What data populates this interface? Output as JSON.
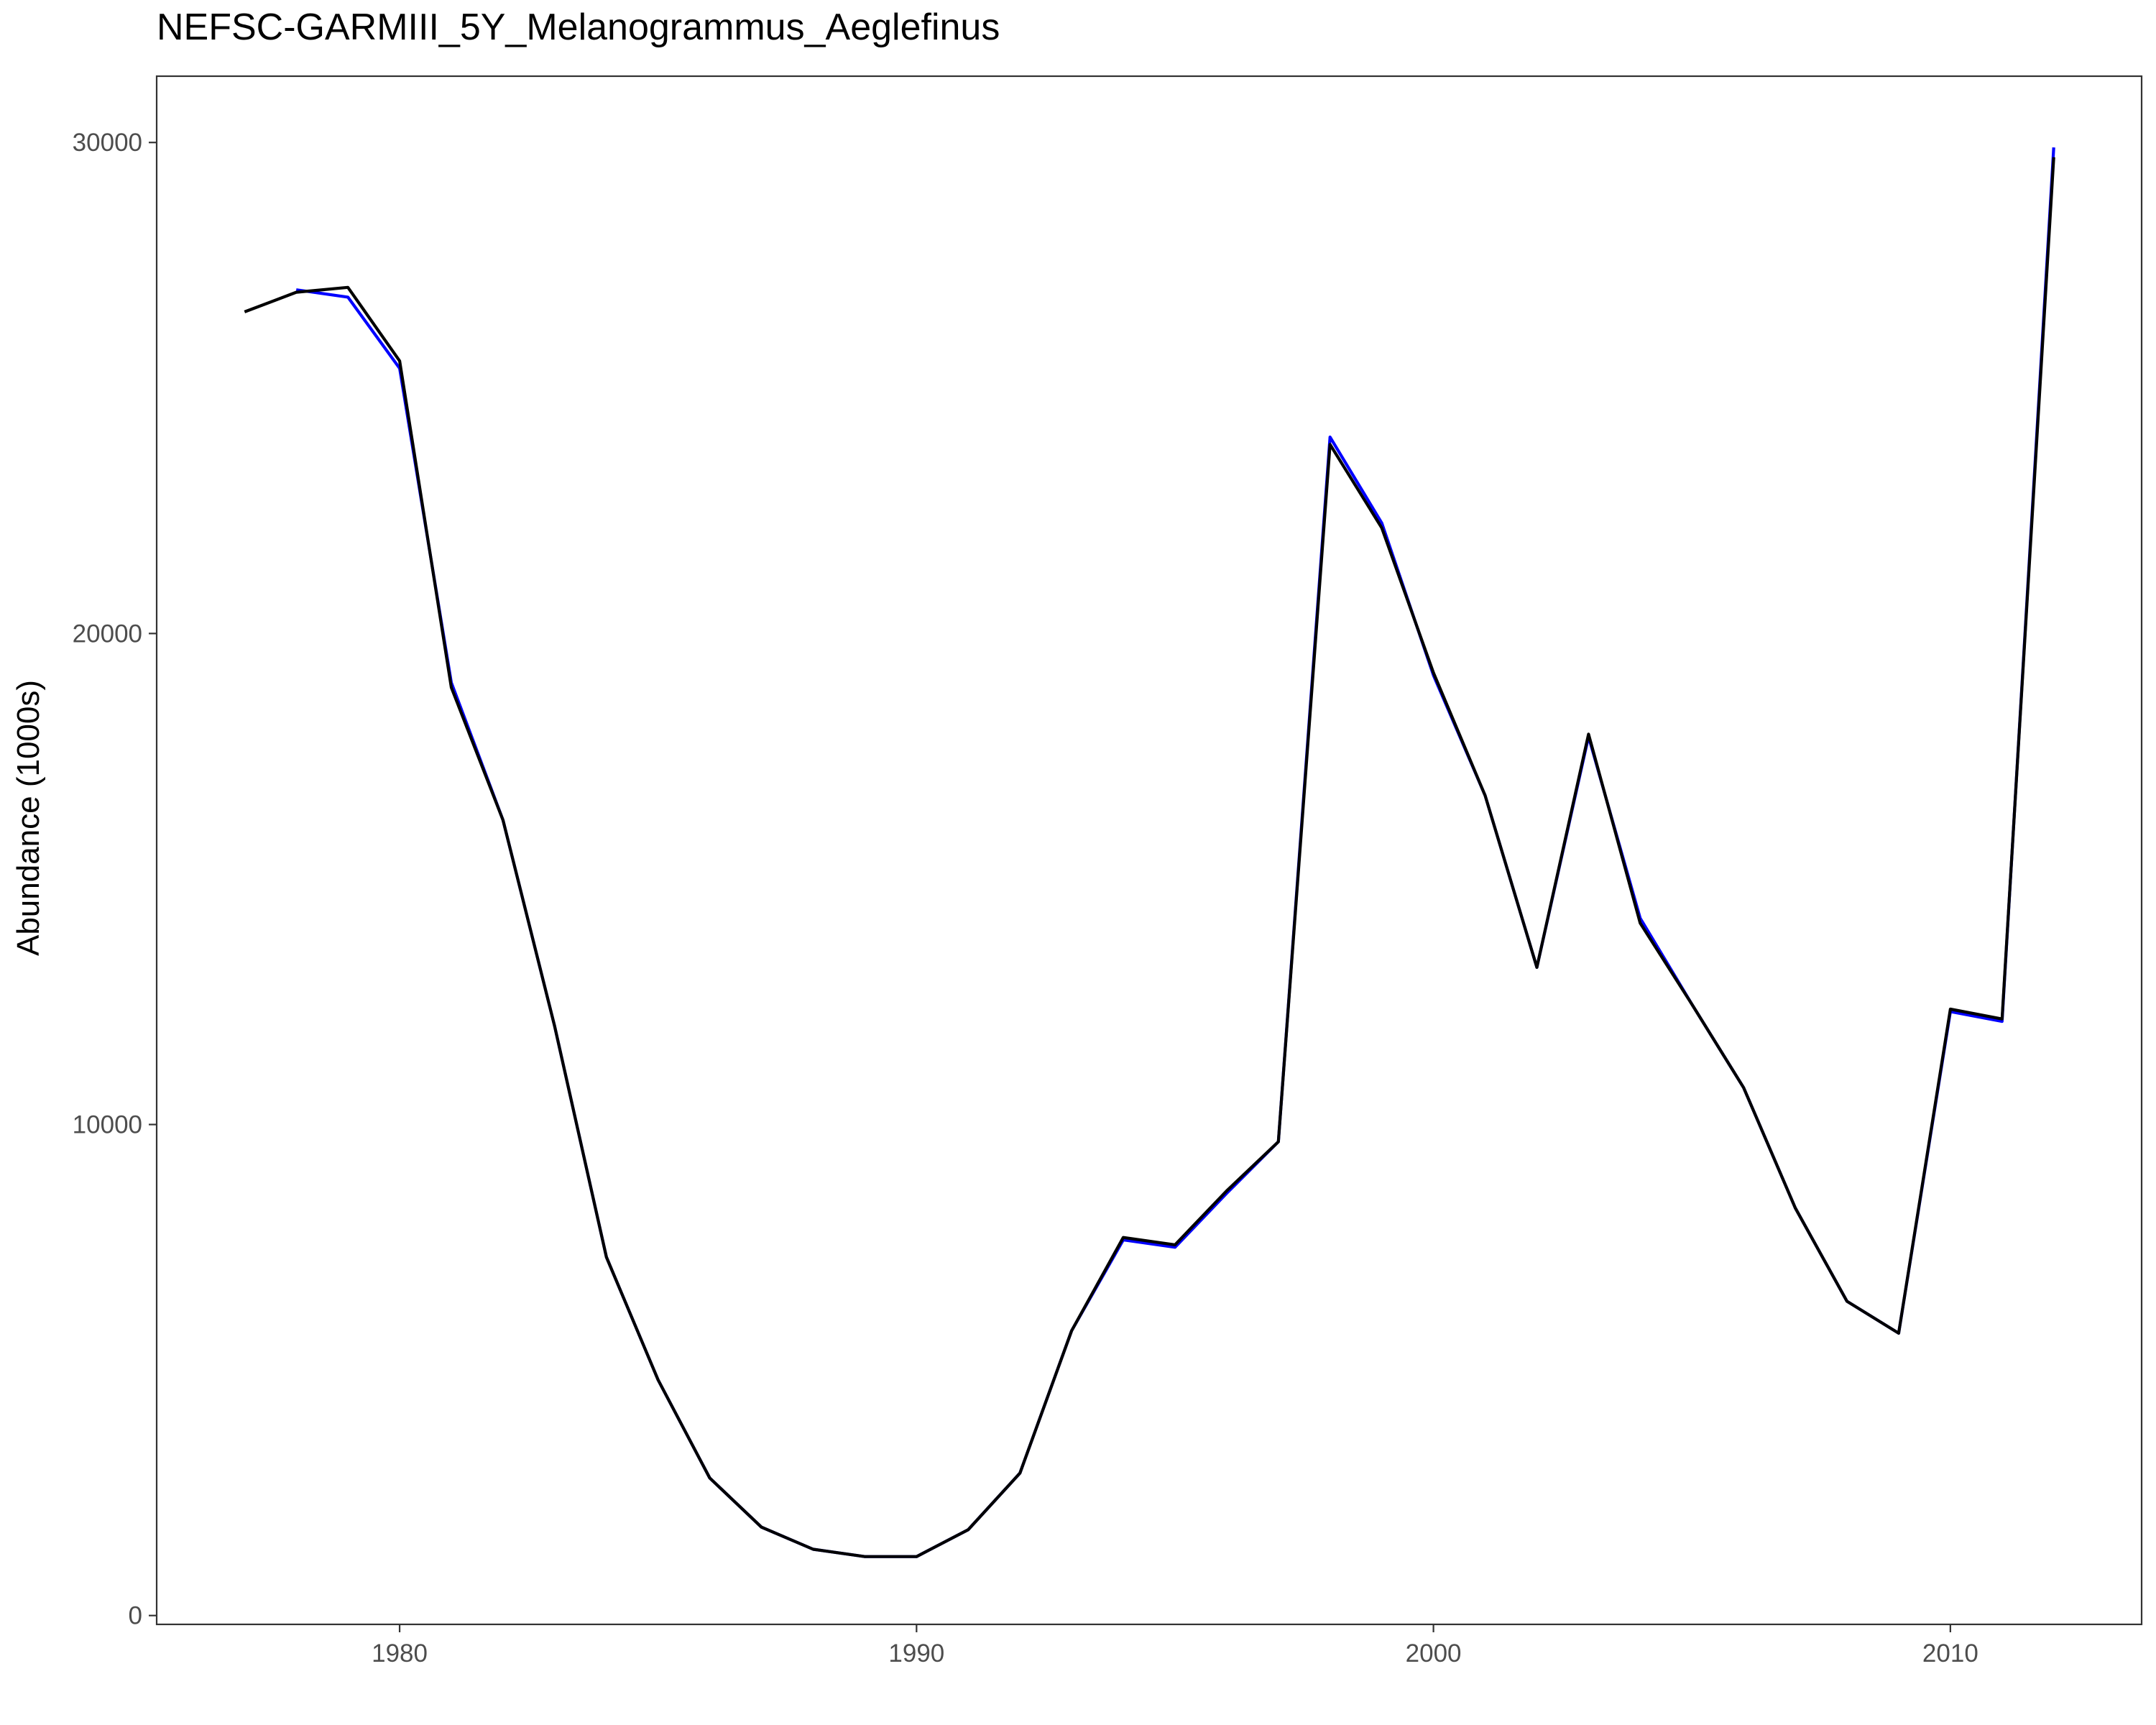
{
  "chart_data": {
    "type": "line",
    "title": "NEFSC-GARMIII_5Y_Melanogrammus_Aeglefinus",
    "xlabel": "",
    "ylabel": "Abundance (1000s)",
    "xlim": [
      1975.3,
      2013.7
    ],
    "ylim": [
      -180,
      31350
    ],
    "x_ticks": [
      1980,
      1990,
      2000,
      2010
    ],
    "y_ticks": [
      0,
      10000,
      20000,
      30000
    ],
    "grid": false,
    "legend": "none",
    "series": [
      {
        "color": "#0000ff",
        "x": [
          1978,
          1979,
          1980,
          1981,
          1982,
          1983,
          1984,
          1985,
          1986,
          1987,
          1988,
          1989,
          1990,
          1991,
          1992,
          1993,
          1994,
          1995,
          1996,
          1997,
          1998,
          1999,
          2000,
          2001,
          2002,
          2003,
          2004,
          2005,
          2006,
          2007,
          2008,
          2009,
          2010,
          2011,
          2012
        ],
        "values": [
          27000,
          26850,
          25400,
          19000,
          16200,
          12000,
          7300,
          4800,
          2800,
          1800,
          1350,
          1200,
          1200,
          1750,
          2900,
          5800,
          7650,
          7500,
          8600,
          9650,
          24000,
          22250,
          19150,
          16700,
          13200,
          17900,
          14200,
          12450,
          10750,
          8300,
          6400,
          5750,
          12300,
          12100,
          29900
        ]
      },
      {
        "color": "#000000",
        "x": [
          1977,
          1978,
          1979,
          1980,
          1981,
          1982,
          1983,
          1984,
          1985,
          1986,
          1987,
          1988,
          1989,
          1990,
          1991,
          1992,
          1993,
          1994,
          1995,
          1996,
          1997,
          1998,
          1999,
          2000,
          2001,
          2002,
          2003,
          2004,
          2005,
          2006,
          2007,
          2008,
          2009,
          2010,
          2011,
          2012
        ],
        "values": [
          26550,
          26950,
          27050,
          25550,
          18900,
          16200,
          12000,
          7300,
          4800,
          2800,
          1800,
          1350,
          1200,
          1200,
          1750,
          2900,
          5800,
          7700,
          7550,
          8650,
          9650,
          23850,
          22150,
          19200,
          16700,
          13200,
          17950,
          14100,
          12450,
          10750,
          8300,
          6400,
          5750,
          12350,
          12150,
          29700
        ]
      }
    ]
  }
}
